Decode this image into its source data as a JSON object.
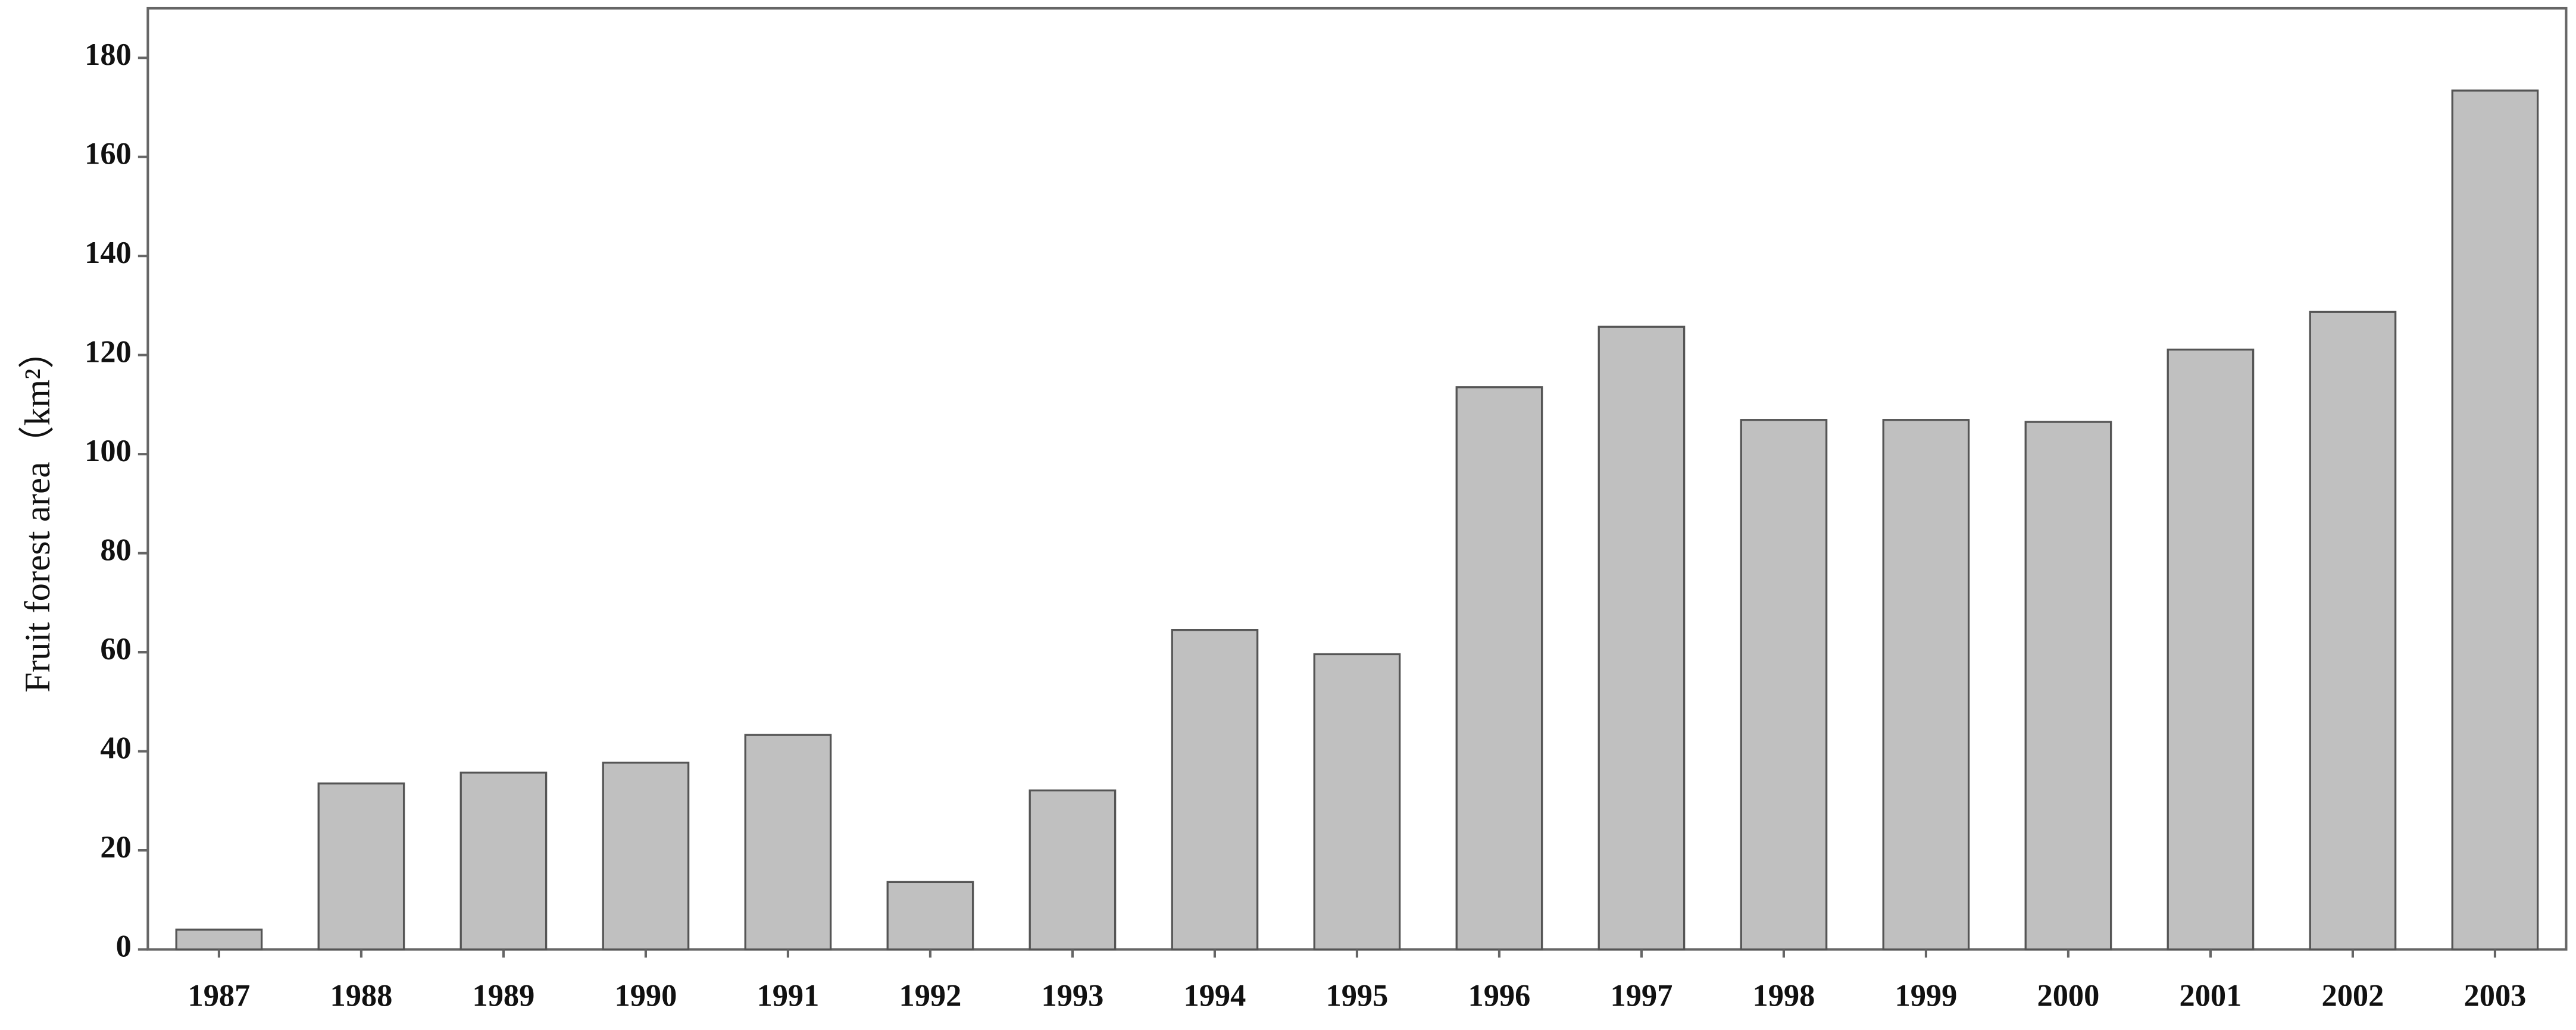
{
  "chart_data": {
    "type": "bar",
    "y_label": "Fruit forest area（km²）",
    "categories": [
      "1987",
      "1988",
      "1989",
      "1990",
      "1991",
      "1992",
      "1993",
      "1994",
      "1995",
      "1996",
      "1997",
      "1998",
      "1999",
      "2000",
      "2001",
      "2002",
      "2003"
    ],
    "values": [
      4,
      33.5,
      35.7,
      37.7,
      43.3,
      13.6,
      32.1,
      64.5,
      59.6,
      113.5,
      125.7,
      106.9,
      106.9,
      106.5,
      121.1,
      128.7,
      173.4
    ],
    "color": "#c0c0c0",
    "ylim": [
      0,
      190
    ],
    "yticks": [
      0,
      20,
      40,
      60,
      80,
      100,
      120,
      140,
      160,
      180
    ],
    "grid": false
  }
}
